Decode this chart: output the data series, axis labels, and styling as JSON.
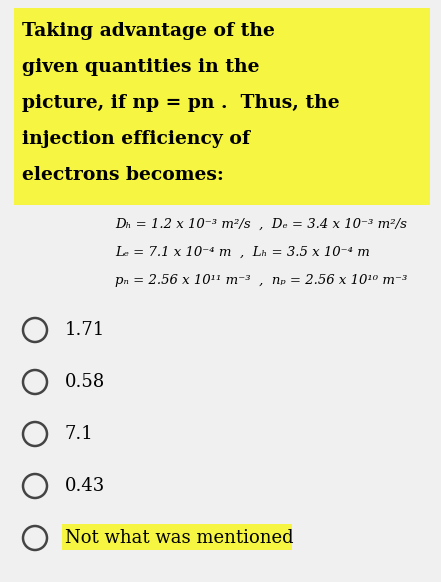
{
  "bg_color": "#f0f0f0",
  "header_bg_color": "#f5f542",
  "header_lines": [
    "Taking advantage of the",
    "given quantities in the",
    "picture, if np = pn .  Thus, the",
    "injection efficiency of",
    "electrons becomes:"
  ],
  "param_line1": "Dₕ = 1.2 x 10⁻³ m²/s  ,  Dₑ = 3.4 x 10⁻³ m²/s",
  "param_line2": "Lₑ = 7.1 x 10⁻⁴ m  ,  Lₕ = 3.5 x 10⁻⁴ m",
  "param_line3": "pₙ = 2.56 x 10¹¹ m⁻³  ,  nₚ = 2.56 x 10¹⁰ m⁻³",
  "choices": [
    "1.71",
    "0.58",
    "7.1",
    "0.43",
    "Not what was mentioned"
  ],
  "last_choice_highlight": true,
  "last_choice_bg": "#f5f542",
  "text_color": "#000000",
  "header_font_size": 13.5,
  "param_font_size": 9.5,
  "choice_font_size": 13
}
